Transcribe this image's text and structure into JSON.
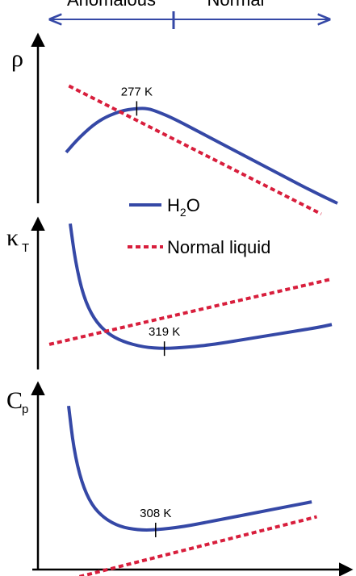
{
  "regions": {
    "left": "Anomalous",
    "right": "Normal"
  },
  "colors": {
    "h2o": "#3548a6",
    "normal": "#d81e3c",
    "axis": "#000000"
  },
  "legend": {
    "h2o_main": "H",
    "h2o_sub": "2",
    "h2o_tail": "O",
    "normal": "Normal liquid"
  },
  "chart_data": [
    {
      "type": "line",
      "id": "density",
      "ylabel": "ρ",
      "ylabel_sub": "",
      "annotation": "277 K",
      "xlim": [
        0,
        100
      ],
      "ylim": [
        0,
        100
      ],
      "series": [
        {
          "name": "H2O",
          "style": "solid",
          "x": [
            0,
            5,
            12,
            20,
            26,
            30,
            34,
            40,
            50,
            60,
            70,
            80,
            90,
            100
          ],
          "y": [
            43,
            56,
            70,
            78,
            80,
            80,
            77,
            71,
            59,
            47,
            35,
            23,
            11,
            0
          ]
        },
        {
          "name": "Normal liquid",
          "style": "dashed",
          "x": [
            1,
            94
          ],
          "y": [
            99,
            -9
          ]
        }
      ],
      "annotation_x": 26,
      "annotation_y": 80
    },
    {
      "type": "line",
      "id": "compressibility",
      "ylabel": "κ",
      "ylabel_sub": "T",
      "annotation": "319 K",
      "xlim": [
        0,
        100
      ],
      "ylim": [
        0,
        100
      ],
      "series": [
        {
          "name": "H2O",
          "style": "solid",
          "x": [
            0,
            2,
            5,
            9,
            14,
            20,
            28,
            36,
            45,
            55,
            65,
            75,
            85,
            95,
            100
          ],
          "y": [
            97,
            70,
            46,
            30,
            20,
            14,
            10,
            9,
            10,
            12,
            15,
            18,
            21,
            24,
            26
          ]
        },
        {
          "name": "Normal liquid",
          "style": "dashed",
          "x": [
            -8,
            100
          ],
          "y": [
            12,
            58
          ]
        }
      ],
      "annotation_x": 36,
      "annotation_y": 9
    },
    {
      "type": "line",
      "id": "heat_capacity",
      "ylabel": "C",
      "ylabel_sub": "p",
      "annotation": "308 K",
      "xlim": [
        0,
        100
      ],
      "ylim": [
        0,
        100
      ],
      "series": [
        {
          "name": "H2O",
          "style": "solid",
          "x": [
            0,
            2,
            5,
            9,
            14,
            20,
            27,
            34,
            45,
            55,
            65,
            75,
            85,
            95
          ],
          "y": [
            96,
            70,
            50,
            36,
            28,
            23,
            21,
            21,
            23,
            26,
            29,
            32,
            35,
            38
          ]
        },
        {
          "name": "Normal liquid",
          "style": "dashed",
          "x": [
            -8,
            97
          ],
          "y": [
            -12,
            29
          ]
        }
      ],
      "annotation_x": 34,
      "annotation_y": 21
    }
  ]
}
